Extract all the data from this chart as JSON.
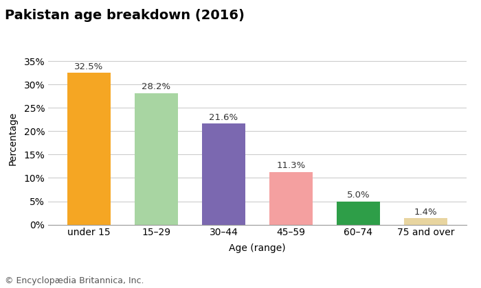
{
  "title": "Pakistan age breakdown (2016)",
  "categories": [
    "under 15",
    "15–29",
    "30–44",
    "45–59",
    "60–74",
    "75 and over"
  ],
  "values": [
    32.5,
    28.2,
    21.6,
    11.3,
    5.0,
    1.4
  ],
  "bar_colors": [
    "#F5A623",
    "#A8D5A2",
    "#7B68B0",
    "#F4A0A0",
    "#2E9E48",
    "#E8D5A0"
  ],
  "xlabel": "Age (range)",
  "ylabel": "Percentage",
  "ylim": [
    0,
    37
  ],
  "yticks": [
    0,
    5,
    10,
    15,
    20,
    25,
    30,
    35
  ],
  "background_color": "#ffffff",
  "footer": "© Encyclopædia Britannica, Inc.",
  "title_fontsize": 14,
  "label_fontsize": 10,
  "tick_fontsize": 10,
  "footer_fontsize": 9,
  "annotation_fontsize": 9.5
}
